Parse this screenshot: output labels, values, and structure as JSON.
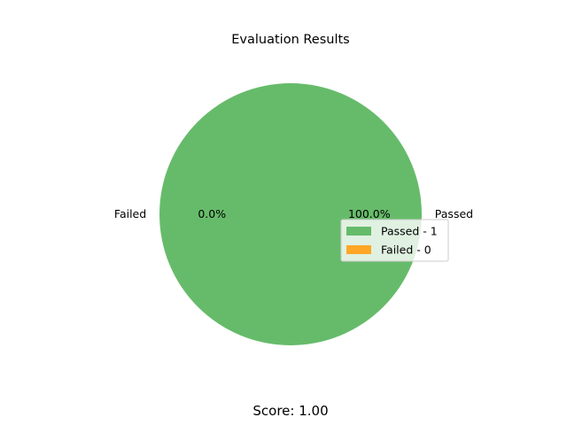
{
  "chart_data": {
    "type": "pie",
    "title": "Evaluation Results",
    "slices": [
      {
        "label": "Passed",
        "value": 1,
        "pct_label": "100.0%",
        "color": "#66bb6a"
      },
      {
        "label": "Failed",
        "value": 0,
        "pct_label": "0.0%",
        "color": "#ffa726"
      }
    ],
    "legend": {
      "placement": "center-right",
      "entries": [
        "Passed - 1",
        "Failed - 0"
      ]
    },
    "footer": "Score: 1.00"
  }
}
